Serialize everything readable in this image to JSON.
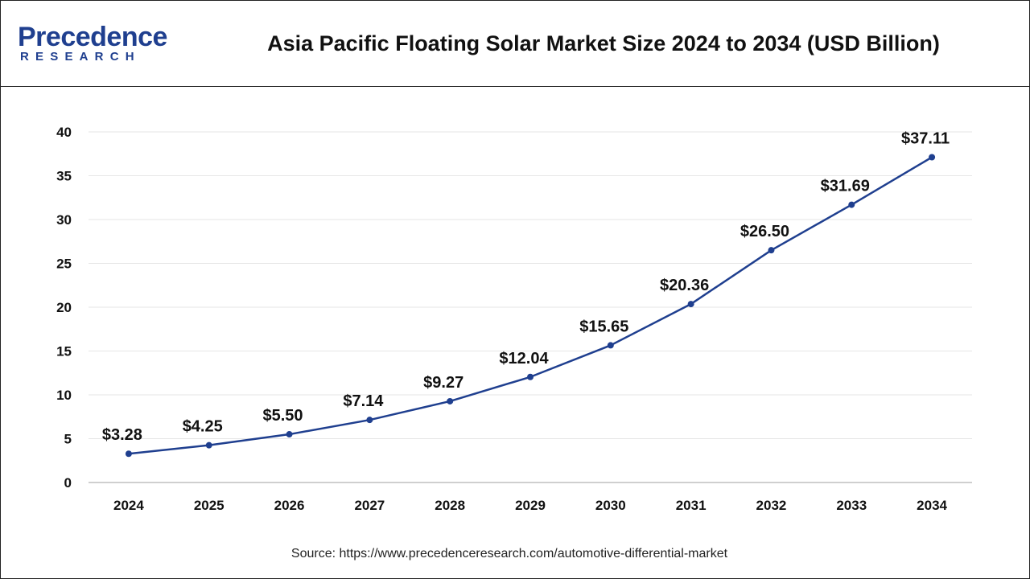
{
  "brand": {
    "name": "Precedence",
    "sub": "RESEARCH",
    "color": "#1f3f8f"
  },
  "chart_data": {
    "type": "line",
    "title": "Asia Pacific Floating Solar Market Size 2024 to 2034 (USD Billion)",
    "xlabel": "",
    "ylabel": "",
    "categories": [
      "2024",
      "2025",
      "2026",
      "2027",
      "2028",
      "2029",
      "2030",
      "2031",
      "2032",
      "2033",
      "2034"
    ],
    "values": [
      3.28,
      4.25,
      5.5,
      7.14,
      9.27,
      12.04,
      15.65,
      20.36,
      26.5,
      31.69,
      37.11
    ],
    "data_labels": [
      "$3.28",
      "$4.25",
      "$5.50",
      "$7.14",
      "$9.27",
      "$12.04",
      "$15.65",
      "$20.36",
      "$26.50",
      "$31.69",
      "$37.11"
    ],
    "ylim": [
      0,
      40
    ],
    "yticks": [
      0,
      5,
      10,
      15,
      20,
      25,
      30,
      35,
      40
    ],
    "grid": true,
    "line_color": "#1f3f8f"
  },
  "source": "Source: https://www.precedenceresearch.com/automotive-differential-market"
}
